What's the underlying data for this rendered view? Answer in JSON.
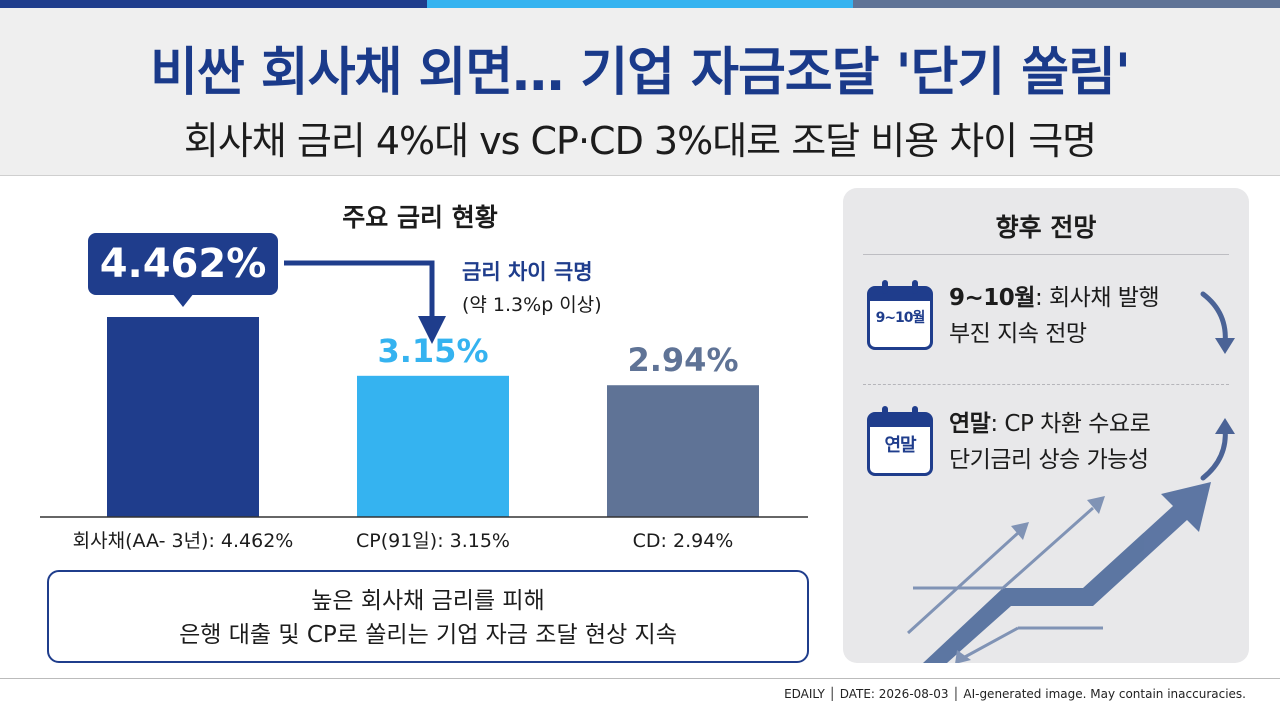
{
  "header": {
    "title": "비싼 회사채 외면… 기업 자금조달 '단기 쏠림'",
    "subtitle": "회사채 금리 4%대 vs CP·CD 3%대로 조달 비용 차이 극명"
  },
  "colors": {
    "navy": "#1f3d8c",
    "sky": "#35b3f0",
    "slate": "#5f7396",
    "topbar": [
      "#1f3d8c",
      "#35b3f0",
      "#5f7396"
    ]
  },
  "chart_data": {
    "type": "bar",
    "title": "주요 금리 현황",
    "categories": [
      "회사채(AA- 3년): 4.462%",
      "CP(91일): 3.15%",
      "CD: 2.94%"
    ],
    "values": [
      4.462,
      3.15,
      2.94
    ],
    "value_labels": [
      "4.462%",
      "3.15%",
      "2.94%"
    ],
    "bar_colors": [
      "#1f3d8c",
      "#35b3f0",
      "#5f7396"
    ],
    "ylim": [
      0,
      4.462
    ],
    "grid": false,
    "annotation": {
      "title": "금리 차이 극명",
      "subtitle": "(약 1.3%p 이상)"
    }
  },
  "summary": {
    "line1": "높은 회사채 금리를 피해",
    "line2": "은행 대출 및 CP로 쏠리는 기업 자금 조달 현상 지속"
  },
  "outlook": {
    "title": "향후 전망",
    "items": [
      {
        "icon": "calendar-icon",
        "icon_label": "9~10월",
        "bold": "9~10월",
        "text1": ": 회사채 발행",
        "text2": "부진 지속 전망",
        "trend_icon": "arrow-down-icon"
      },
      {
        "icon": "calendar-icon",
        "icon_label": "연말",
        "bold": "연말",
        "text1": ": CP 차환 수요로",
        "text2": "단기금리 상승 가능성",
        "trend_icon": "arrow-up-icon"
      }
    ]
  },
  "footer": {
    "text": "EDAILY │ DATE: 2026-08-03 │ AI-generated image. May contain inaccuracies."
  }
}
